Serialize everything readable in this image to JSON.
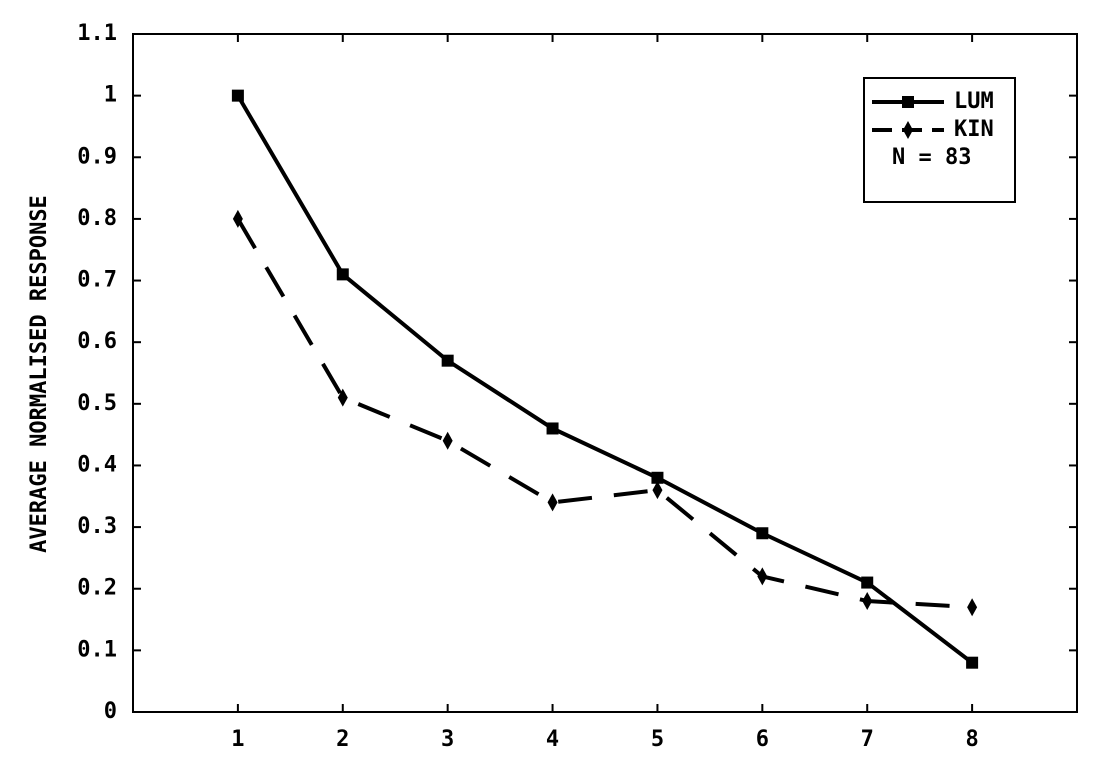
{
  "chart_data": {
    "type": "line",
    "y_label": "AVERAGE NORMALISED RESPONSE",
    "x": [
      1,
      2,
      3,
      4,
      5,
      6,
      7,
      8
    ],
    "xlim": [
      0,
      9
    ],
    "xticks": [
      1,
      2,
      3,
      4,
      5,
      6,
      7,
      8
    ],
    "ylim": [
      0,
      1.1
    ],
    "yticks": [
      0,
      0.1,
      0.2,
      0.3,
      0.4,
      0.5,
      0.6,
      0.7,
      0.8,
      0.9,
      1,
      1.1
    ],
    "grid": false,
    "legend_position": "upper right",
    "annotation": "N = 83",
    "series": [
      {
        "name": "LUM",
        "color": "#000000",
        "dashed": false,
        "marker": "square",
        "values": [
          1.0,
          0.71,
          0.57,
          0.46,
          0.38,
          0.29,
          0.21,
          0.08
        ]
      },
      {
        "name": "KIN",
        "color": "#000000",
        "dashed": true,
        "marker": "diamond",
        "values": [
          0.8,
          0.51,
          0.44,
          0.34,
          0.36,
          0.22,
          0.18,
          0.17
        ]
      }
    ]
  }
}
